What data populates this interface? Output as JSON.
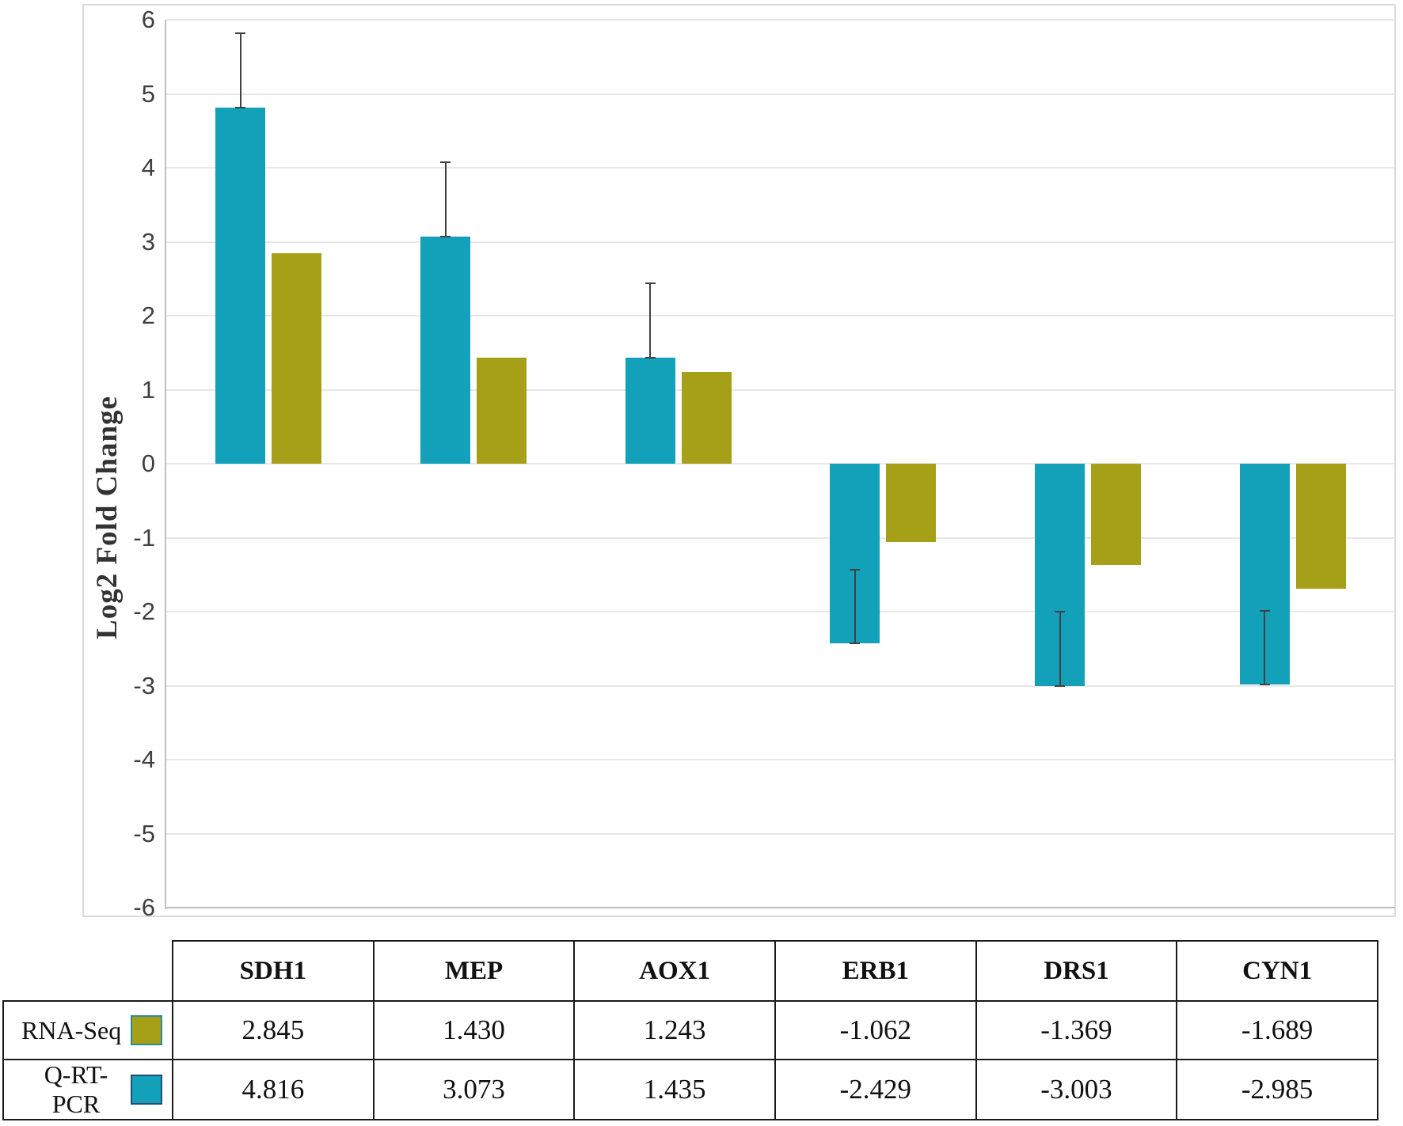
{
  "chart_data": {
    "type": "bar",
    "title": "",
    "xlabel": "",
    "ylabel": "Log2 Fold Change",
    "ylim": [
      -6,
      6
    ],
    "ytick_step": 1,
    "grid": true,
    "legend_position": "table-below-left",
    "categories": [
      "SDH1",
      "MEP",
      "AOX1",
      "ERB1",
      "DRS1",
      "CYN1"
    ],
    "series": [
      {
        "name": "Q-RT-PCR",
        "color": "#12a1b9",
        "values": [
          4.816,
          3.073,
          1.435,
          -2.429,
          -3.003,
          -2.985
        ],
        "error_plus": [
          1.0,
          1.0,
          1.0,
          1.0,
          1.0,
          1.0
        ]
      },
      {
        "name": "RNA-Seq",
        "color": "#a5a018",
        "values": [
          2.845,
          1.43,
          1.243,
          -1.062,
          -1.369,
          -1.689
        ],
        "error_plus": null
      }
    ],
    "y_tick_labels": [
      "6",
      "5",
      "4",
      "3",
      "2",
      "1",
      "0",
      "-1",
      "-2",
      "-3",
      "-4",
      "-5",
      "-6"
    ]
  },
  "table": {
    "column_headers": [
      "SDH1",
      "MEP",
      "AOX1",
      "ERB1",
      "DRS1",
      "CYN1"
    ],
    "rows": [
      {
        "label": "RNA-Seq",
        "swatch_color": "#a5a018",
        "swatch_border": "#2e8b9a",
        "values": [
          "2.845",
          "1.430",
          "1.243",
          "-1.062",
          "-1.369",
          "-1.689"
        ]
      },
      {
        "label": "Q-RT-PCR",
        "swatch_color": "#12a1b9",
        "swatch_border": "#1f4e79",
        "values": [
          "4.816",
          "3.073",
          "1.435",
          "-2.429",
          "-3.003",
          "-2.985"
        ]
      }
    ]
  },
  "colors": {
    "teal_series": "#12a1b9",
    "olive_series": "#a5a018",
    "gridline": "#e8e8e8",
    "axis_line": "#c0c0c0",
    "error_bar": "#404040",
    "table_border": "#1a1a1a",
    "chart_frame": "#dbdbdb",
    "tick_text": "#3f3f3f"
  }
}
